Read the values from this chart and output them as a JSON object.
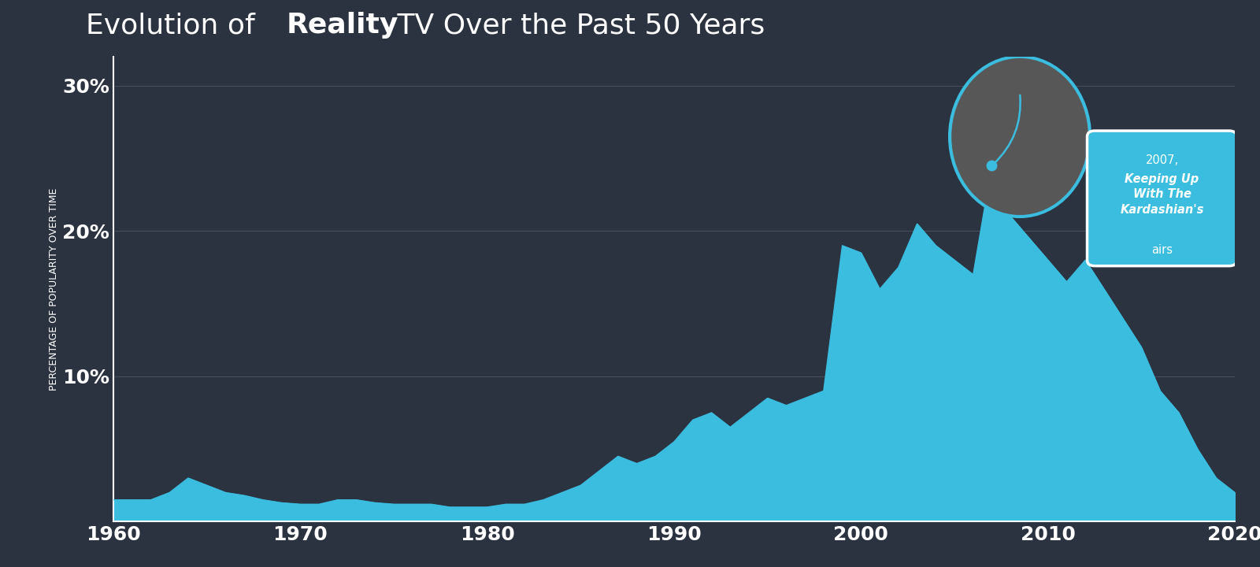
{
  "title_normal": "Evolution of ",
  "title_bold": "Reality",
  "title_suffix": " TV Over the Past 50 Years",
  "header_color": "#3bbde0",
  "bg_color": "#2b3340",
  "fill_color": "#3bbde0",
  "ylabel": "PERCENTAGE OF POPULARITY OVER TIME",
  "years": [
    1960,
    1961,
    1962,
    1963,
    1964,
    1965,
    1966,
    1967,
    1968,
    1969,
    1970,
    1971,
    1972,
    1973,
    1974,
    1975,
    1976,
    1977,
    1978,
    1979,
    1980,
    1981,
    1982,
    1983,
    1984,
    1985,
    1986,
    1987,
    1988,
    1989,
    1990,
    1991,
    1992,
    1993,
    1994,
    1995,
    1996,
    1997,
    1998,
    1999,
    2000,
    2001,
    2002,
    2003,
    2004,
    2005,
    2006,
    2007,
    2008,
    2009,
    2010,
    2011,
    2012,
    2013,
    2014,
    2015,
    2016,
    2017,
    2018,
    2019,
    2020
  ],
  "values": [
    1.5,
    1.5,
    1.5,
    2.0,
    3.0,
    2.5,
    2.0,
    1.8,
    1.5,
    1.3,
    1.2,
    1.2,
    1.5,
    1.5,
    1.3,
    1.2,
    1.2,
    1.2,
    1.0,
    1.0,
    1.0,
    1.2,
    1.2,
    1.5,
    2.0,
    2.5,
    3.5,
    4.5,
    4.0,
    4.5,
    5.5,
    7.0,
    7.5,
    6.5,
    7.5,
    8.5,
    8.0,
    8.5,
    9.0,
    19.0,
    18.5,
    16.0,
    17.5,
    20.5,
    19.0,
    18.0,
    17.0,
    24.5,
    21.0,
    19.5,
    18.0,
    16.5,
    18.0,
    16.0,
    14.0,
    12.0,
    9.0,
    7.5,
    5.0,
    3.0,
    2.0
  ],
  "yticks": [
    0,
    10,
    20,
    30
  ],
  "ytick_labels": [
    "",
    "10%",
    "20%",
    "30%"
  ],
  "xticks": [
    1960,
    1970,
    1980,
    1990,
    2000,
    2010,
    2020
  ],
  "xtick_labels": [
    "1960",
    "1970",
    "1980",
    "1990",
    "2000",
    "2010",
    "2020"
  ],
  "annotation_year": 2007,
  "annotation_value": 24.5,
  "annotation_text_year": "2007,",
  "annotation_text_bold": "Keeping Up\nWith The\nKardashian's",
  "annotation_text_suffix": "airs",
  "xlim": [
    1960,
    2020
  ],
  "ylim": [
    0,
    32
  ]
}
